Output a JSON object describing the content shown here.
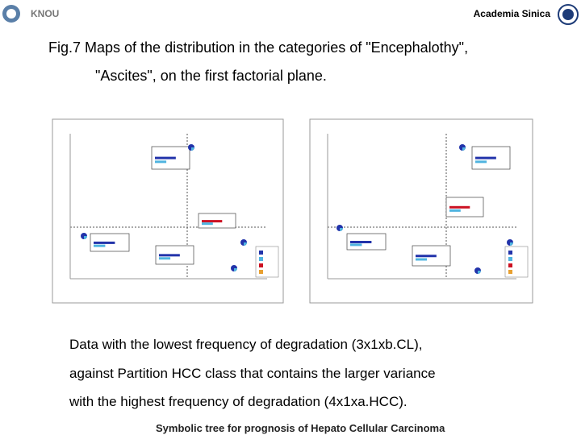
{
  "header": {
    "left_logo": "KNOU",
    "right_org": "Academia Sinica"
  },
  "title": [
    "Fig.7 Maps of  the distribution in the categories of \"Encephalothy\",",
    "\"Ascites\", on the first factorial plane."
  ],
  "body": [
    "Data with the lowest frequency of degradation (3x1xb.CL),",
    "against Partition HCC class that contains the larger variance",
    "with the highest frequency of degradation (4x1xa.HCC)."
  ],
  "footer": "Symbolic tree for prognosis of Hepato Cellular Carcinoma"
}
